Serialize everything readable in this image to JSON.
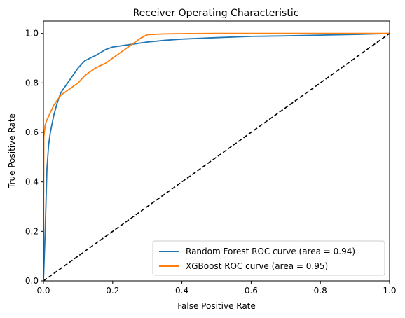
{
  "chart_data": {
    "type": "line",
    "title": "Receiver Operating Characteristic",
    "xlabel": "False Positive Rate",
    "ylabel": "True Positive Rate",
    "xlim": [
      0.0,
      1.0
    ],
    "ylim": [
      0.0,
      1.05
    ],
    "xticks": [
      "0.0",
      "0.2",
      "0.4",
      "0.6",
      "0.8",
      "1.0"
    ],
    "yticks": [
      "0.0",
      "0.2",
      "0.4",
      "0.6",
      "0.8",
      "1.0"
    ],
    "grid": false,
    "legend_position": "lower-right",
    "series": [
      {
        "name": "Random Forest ROC curve (area = 0.94)",
        "color": "#1f77b4",
        "x": [
          0.0,
          0.005,
          0.01,
          0.015,
          0.02,
          0.03,
          0.04,
          0.05,
          0.06,
          0.08,
          0.1,
          0.12,
          0.15,
          0.18,
          0.2,
          0.25,
          0.3,
          0.35,
          0.4,
          0.5,
          0.6,
          0.7,
          0.8,
          0.9,
          1.0
        ],
        "y": [
          0.0,
          0.2,
          0.45,
          0.55,
          0.6,
          0.67,
          0.72,
          0.76,
          0.78,
          0.82,
          0.86,
          0.89,
          0.91,
          0.935,
          0.945,
          0.955,
          0.965,
          0.972,
          0.977,
          0.983,
          0.988,
          0.99,
          0.993,
          0.996,
          1.0
        ]
      },
      {
        "name": "XGBoost ROC curve (area = 0.95)",
        "color": "#ff7f0e",
        "x": [
          0.0,
          0.001,
          0.005,
          0.01,
          0.02,
          0.03,
          0.04,
          0.05,
          0.07,
          0.1,
          0.12,
          0.15,
          0.18,
          0.2,
          0.22,
          0.25,
          0.28,
          0.3,
          0.35,
          0.4,
          0.5,
          0.6,
          0.8,
          1.0
        ],
        "y": [
          0.0,
          0.58,
          0.63,
          0.65,
          0.68,
          0.71,
          0.73,
          0.75,
          0.77,
          0.8,
          0.83,
          0.86,
          0.88,
          0.9,
          0.92,
          0.95,
          0.98,
          0.995,
          0.998,
          0.999,
          1.0,
          1.0,
          1.0,
          1.0
        ]
      },
      {
        "name": "",
        "color": "#000000",
        "dashed": true,
        "x": [
          0.0,
          1.0
        ],
        "y": [
          0.0,
          1.0
        ]
      }
    ]
  }
}
